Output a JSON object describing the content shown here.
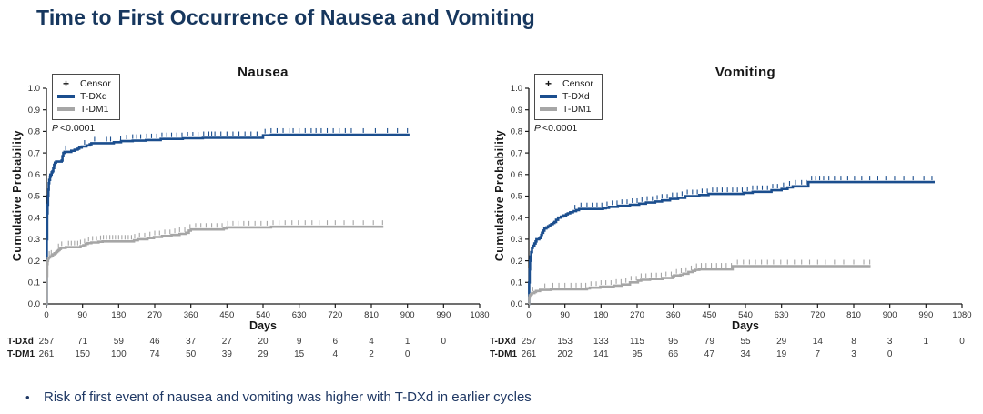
{
  "page": {
    "title": "Time to First Occurrence of Nausea and Vomiting",
    "bullet_marker": "•",
    "bullet": "Risk of first event of nausea and vomiting was higher with T-DXd in earlier cycles",
    "colors": {
      "title_navy": "#17375e",
      "bullet_navy": "#1f3864",
      "tdxd_blue": "#1b4e8e",
      "tdm1_gray": "#a6a6a6",
      "axis": "#1a1a1a"
    }
  },
  "chart_data": [
    {
      "type": "line",
      "title": "Nausea",
      "xlabel": "Days",
      "ylabel": "Cumulative Probability",
      "p_label": "P",
      "p_value": "<0.0001",
      "xlim": [
        0,
        1080
      ],
      "ylim": [
        0,
        1
      ],
      "xticks": [
        0,
        90,
        180,
        270,
        360,
        450,
        540,
        630,
        720,
        810,
        900,
        990,
        1080
      ],
      "yticks": [
        0.0,
        0.1,
        0.2,
        0.3,
        0.4,
        0.5,
        0.6,
        0.7,
        0.8,
        0.9,
        1.0
      ],
      "legend": {
        "censor_marker": "+",
        "censor": "Censor",
        "series": [
          "T-DXd",
          "T-DM1"
        ]
      },
      "series": [
        {
          "name": "T-DXd",
          "color": "#1b4e8e",
          "step": [
            [
              0,
              0
            ],
            [
              1,
              0.3
            ],
            [
              2,
              0.42
            ],
            [
              3,
              0.46
            ],
            [
              4,
              0.5
            ],
            [
              5,
              0.53
            ],
            [
              6,
              0.56
            ],
            [
              7,
              0.575
            ],
            [
              9,
              0.59
            ],
            [
              11,
              0.6
            ],
            [
              13,
              0.61
            ],
            [
              15,
              0.615
            ],
            [
              17,
              0.63
            ],
            [
              19,
              0.645
            ],
            [
              21,
              0.655
            ],
            [
              24,
              0.66
            ],
            [
              38,
              0.665
            ],
            [
              40,
              0.685
            ],
            [
              42,
              0.7
            ],
            [
              45,
              0.705
            ],
            [
              62,
              0.71
            ],
            [
              70,
              0.715
            ],
            [
              78,
              0.72
            ],
            [
              82,
              0.725
            ],
            [
              88,
              0.73
            ],
            [
              100,
              0.735
            ],
            [
              108,
              0.74
            ],
            [
              112,
              0.745
            ],
            [
              168,
              0.75
            ],
            [
              186,
              0.755
            ],
            [
              215,
              0.757
            ],
            [
              248,
              0.76
            ],
            [
              285,
              0.765
            ],
            [
              340,
              0.768
            ],
            [
              390,
              0.77
            ],
            [
              540,
              0.782
            ],
            [
              560,
              0.785
            ],
            [
              905,
              0.785
            ]
          ],
          "censor_days": [
            8,
            48,
            95,
            120,
            150,
            160,
            185,
            200,
            215,
            225,
            235,
            250,
            262,
            275,
            288,
            300,
            312,
            325,
            338,
            352,
            365,
            378,
            392,
            405,
            412,
            420,
            435,
            450,
            465,
            480,
            495,
            510,
            525,
            545,
            560,
            575,
            590,
            605,
            615,
            630,
            645,
            660,
            672,
            685,
            700,
            715,
            730,
            745,
            760,
            790,
            820,
            850,
            875,
            900
          ]
        },
        {
          "name": "T-DM1",
          "color": "#a6a6a6",
          "step": [
            [
              0,
              0
            ],
            [
              1,
              0.13
            ],
            [
              2,
              0.185
            ],
            [
              3,
              0.2
            ],
            [
              4,
              0.21
            ],
            [
              6,
              0.215
            ],
            [
              9,
              0.22
            ],
            [
              13,
              0.225
            ],
            [
              16,
              0.23
            ],
            [
              20,
              0.235
            ],
            [
              24,
              0.24
            ],
            [
              27,
              0.245
            ],
            [
              30,
              0.25
            ],
            [
              33,
              0.255
            ],
            [
              36,
              0.26
            ],
            [
              48,
              0.263
            ],
            [
              85,
              0.268
            ],
            [
              92,
              0.272
            ],
            [
              98,
              0.278
            ],
            [
              103,
              0.282
            ],
            [
              112,
              0.285
            ],
            [
              130,
              0.288
            ],
            [
              140,
              0.29
            ],
            [
              218,
              0.295
            ],
            [
              228,
              0.3
            ],
            [
              252,
              0.305
            ],
            [
              268,
              0.31
            ],
            [
              288,
              0.315
            ],
            [
              312,
              0.32
            ],
            [
              332,
              0.325
            ],
            [
              348,
              0.33
            ],
            [
              355,
              0.34
            ],
            [
              360,
              0.345
            ],
            [
              442,
              0.35
            ],
            [
              450,
              0.355
            ],
            [
              560,
              0.358
            ],
            [
              840,
              0.358
            ]
          ],
          "censor_days": [
            7,
            12,
            30,
            38,
            55,
            62,
            70,
            78,
            85,
            95,
            105,
            115,
            125,
            135,
            142,
            150,
            158,
            165,
            172,
            180,
            188,
            196,
            204,
            212,
            220,
            232,
            245,
            258,
            270,
            282,
            295,
            308,
            320,
            332,
            345,
            358,
            372,
            385,
            398,
            412,
            425,
            438,
            452,
            465,
            478,
            492,
            505,
            520,
            535,
            550,
            565,
            580,
            595,
            612,
            628,
            645,
            662,
            680,
            700,
            720,
            742,
            765,
            790,
            815,
            838
          ]
        }
      ],
      "risk_table": {
        "rows": [
          {
            "label": "T-DXd",
            "values": [
              257,
              71,
              59,
              46,
              37,
              27,
              20,
              9,
              6,
              4,
              1,
              0
            ]
          },
          {
            "label": "T-DM1",
            "values": [
              261,
              150,
              100,
              74,
              50,
              39,
              29,
              15,
              4,
              2,
              0
            ]
          }
        ]
      }
    },
    {
      "type": "line",
      "title": "Vomiting",
      "xlabel": "Days",
      "ylabel": "Cumulative Probability",
      "p_label": "P",
      "p_value": "<0.0001",
      "xlim": [
        0,
        1080
      ],
      "ylim": [
        0,
        1
      ],
      "xticks": [
        0,
        90,
        180,
        270,
        360,
        450,
        540,
        630,
        720,
        810,
        900,
        990,
        1080
      ],
      "yticks": [
        0.0,
        0.1,
        0.2,
        0.3,
        0.4,
        0.5,
        0.6,
        0.7,
        0.8,
        0.9,
        1.0
      ],
      "legend": {
        "censor_marker": "+",
        "censor": "Censor",
        "series": [
          "T-DXd",
          "T-DM1"
        ]
      },
      "series": [
        {
          "name": "T-DXd",
          "color": "#1b4e8e",
          "step": [
            [
              0,
              0
            ],
            [
              1,
              0.1
            ],
            [
              2,
              0.16
            ],
            [
              3,
              0.2
            ],
            [
              4,
              0.22
            ],
            [
              6,
              0.24
            ],
            [
              8,
              0.26
            ],
            [
              10,
              0.27
            ],
            [
              14,
              0.28
            ],
            [
              17,
              0.29
            ],
            [
              19,
              0.3
            ],
            [
              26,
              0.305
            ],
            [
              29,
              0.31
            ],
            [
              31,
              0.32
            ],
            [
              33,
              0.33
            ],
            [
              36,
              0.34
            ],
            [
              39,
              0.35
            ],
            [
              44,
              0.355
            ],
            [
              48,
              0.36
            ],
            [
              52,
              0.365
            ],
            [
              56,
              0.37
            ],
            [
              60,
              0.375
            ],
            [
              64,
              0.38
            ],
            [
              68,
              0.39
            ],
            [
              73,
              0.4
            ],
            [
              80,
              0.405
            ],
            [
              86,
              0.41
            ],
            [
              93,
              0.415
            ],
            [
              97,
              0.42
            ],
            [
              103,
              0.425
            ],
            [
              110,
              0.43
            ],
            [
              118,
              0.435
            ],
            [
              125,
              0.44
            ],
            [
              185,
              0.443
            ],
            [
              192,
              0.445
            ],
            [
              200,
              0.45
            ],
            [
              222,
              0.455
            ],
            [
              252,
              0.46
            ],
            [
              275,
              0.465
            ],
            [
              292,
              0.47
            ],
            [
              315,
              0.475
            ],
            [
              332,
              0.48
            ],
            [
              352,
              0.487
            ],
            [
              372,
              0.492
            ],
            [
              390,
              0.5
            ],
            [
              425,
              0.505
            ],
            [
              448,
              0.51
            ],
            [
              535,
              0.515
            ],
            [
              558,
              0.52
            ],
            [
              605,
              0.527
            ],
            [
              630,
              0.533
            ],
            [
              645,
              0.54
            ],
            [
              658,
              0.545
            ],
            [
              697,
              0.565
            ],
            [
              1012,
              0.565
            ]
          ],
          "censor_days": [
            115,
            130,
            145,
            158,
            170,
            182,
            195,
            208,
            220,
            232,
            245,
            258,
            270,
            282,
            295,
            308,
            320,
            332,
            345,
            358,
            370,
            382,
            395,
            408,
            420,
            432,
            445,
            458,
            470,
            482,
            495,
            508,
            520,
            532,
            545,
            558,
            570,
            582,
            595,
            608,
            620,
            635,
            650,
            665,
            680,
            692,
            705,
            715,
            725,
            735,
            748,
            762,
            778,
            795,
            812,
            830,
            850,
            870,
            890,
            912,
            935,
            958,
            985,
            1005
          ]
        },
        {
          "name": "T-DM1",
          "color": "#a6a6a6",
          "step": [
            [
              0,
              0
            ],
            [
              1,
              0.03
            ],
            [
              2,
              0.04
            ],
            [
              5,
              0.045
            ],
            [
              8,
              0.05
            ],
            [
              14,
              0.055
            ],
            [
              18,
              0.06
            ],
            [
              28,
              0.065
            ],
            [
              55,
              0.068
            ],
            [
              145,
              0.072
            ],
            [
              152,
              0.075
            ],
            [
              178,
              0.08
            ],
            [
              212,
              0.085
            ],
            [
              232,
              0.09
            ],
            [
              252,
              0.1
            ],
            [
              272,
              0.108
            ],
            [
              280,
              0.112
            ],
            [
              302,
              0.115
            ],
            [
              333,
              0.12
            ],
            [
              358,
              0.128
            ],
            [
              362,
              0.132
            ],
            [
              378,
              0.135
            ],
            [
              385,
              0.14
            ],
            [
              398,
              0.148
            ],
            [
              408,
              0.153
            ],
            [
              415,
              0.158
            ],
            [
              425,
              0.16
            ],
            [
              508,
              0.175
            ],
            [
              852,
              0.175
            ]
          ],
          "censor_days": [
            10,
            40,
            60,
            75,
            90,
            105,
            118,
            130,
            142,
            155,
            168,
            180,
            192,
            205,
            218,
            230,
            242,
            255,
            268,
            280,
            292,
            305,
            318,
            330,
            342,
            355,
            368,
            380,
            392,
            405,
            418,
            430,
            442,
            455,
            468,
            480,
            492,
            505,
            520,
            535,
            550,
            565,
            580,
            595,
            610,
            628,
            645,
            662,
            680,
            700,
            720,
            740,
            762,
            785,
            810,
            835,
            850
          ]
        }
      ],
      "risk_table": {
        "rows": [
          {
            "label": "T-DXd",
            "values": [
              257,
              153,
              133,
              115,
              95,
              79,
              55,
              29,
              14,
              8,
              3,
              1,
              0
            ]
          },
          {
            "label": "T-DM1",
            "values": [
              261,
              202,
              141,
              95,
              66,
              47,
              34,
              19,
              7,
              3,
              0
            ]
          }
        ]
      }
    }
  ]
}
